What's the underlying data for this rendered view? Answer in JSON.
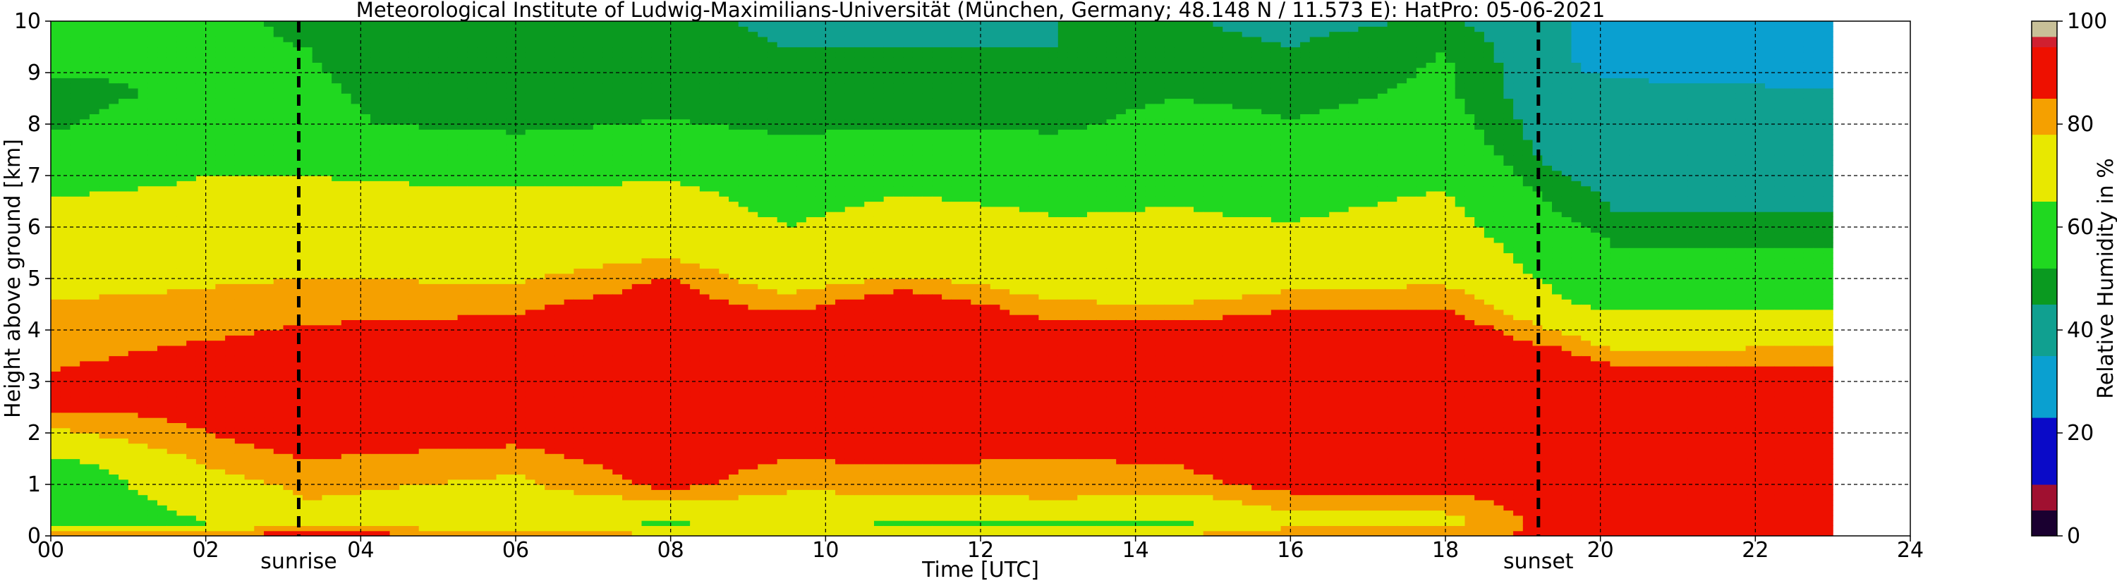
{
  "chart_data": {
    "type": "heatmap",
    "title": "Meteorological Institute of Ludwig-Maximilians-Universität (München, Germany; 48.148 N / 11.573 E):    HatPro: 05-06-2021",
    "xlabel": "Time [UTC]",
    "ylabel": "Height above ground [km]",
    "xlim": [
      0,
      24
    ],
    "ylim": [
      0,
      10
    ],
    "x_ticks": [
      "00",
      "02",
      "04",
      "06",
      "08",
      "10",
      "12",
      "14",
      "16",
      "18",
      "20",
      "22",
      "24"
    ],
    "y_ticks": [
      "0",
      "1",
      "2",
      "3",
      "4",
      "5",
      "6",
      "7",
      "8",
      "9",
      "10"
    ],
    "grid": true,
    "data_end_hour": 23,
    "colorbar": {
      "label": "Relative Humidity in %",
      "range": [
        0,
        100
      ],
      "ticks": [
        "0",
        "20",
        "40",
        "60",
        "80",
        "100"
      ],
      "colors": [
        {
          "from": 0,
          "to": 5,
          "color": "#1a0030"
        },
        {
          "from": 5,
          "to": 10,
          "color": "#a01030"
        },
        {
          "from": 10,
          "to": 23,
          "color": "#0a0ac8"
        },
        {
          "from": 23,
          "to": 35,
          "color": "#0aa0d0"
        },
        {
          "from": 35,
          "to": 45,
          "color": "#10a090"
        },
        {
          "from": 45,
          "to": 52,
          "color": "#0a9a20"
        },
        {
          "from": 52,
          "to": 65,
          "color": "#20d820"
        },
        {
          "from": 65,
          "to": 78,
          "color": "#e8e800"
        },
        {
          "from": 78,
          "to": 85,
          "color": "#f5a000"
        },
        {
          "from": 85,
          "to": 95,
          "color": "#ee1000"
        },
        {
          "from": 95,
          "to": 97,
          "color": "#d02030"
        },
        {
          "from": 97,
          "to": 100,
          "color": "#c8c098"
        }
      ]
    },
    "markers": [
      {
        "label": "sunrise",
        "hour": 3.2
      },
      {
        "label": "sunset",
        "hour": 19.2
      }
    ],
    "humidity_profiles": [
      {
        "hour": 0,
        "levels": [
          [
            0,
            85
          ],
          [
            0.25,
            52
          ],
          [
            1.3,
            58
          ],
          [
            1.8,
            72
          ],
          [
            2.6,
            88
          ],
          [
            4.6,
            78
          ],
          [
            5.2,
            70
          ],
          [
            6.5,
            66
          ],
          [
            7.8,
            52
          ],
          [
            8.6,
            50
          ],
          [
            10,
            58
          ]
        ]
      },
      {
        "hour": 2,
        "levels": [
          [
            0,
            85
          ],
          [
            0.25,
            65
          ],
          [
            1.0,
            74
          ],
          [
            2.0,
            85
          ],
          [
            3.0,
            90
          ],
          [
            4.6,
            80
          ],
          [
            5.5,
            72
          ],
          [
            7.0,
            65
          ],
          [
            8.0,
            55
          ],
          [
            9.2,
            52
          ],
          [
            10,
            55
          ]
        ]
      },
      {
        "hour": 3.3,
        "levels": [
          [
            0,
            90
          ],
          [
            0.3,
            75
          ],
          [
            1.0,
            80
          ],
          [
            2.0,
            90
          ],
          [
            3.0,
            92
          ],
          [
            4.6,
            82
          ],
          [
            5.3,
            75
          ],
          [
            7.0,
            65
          ],
          [
            8.0,
            53
          ],
          [
            9.5,
            52
          ],
          [
            10,
            50
          ]
        ]
      },
      {
        "hour": 6,
        "levels": [
          [
            0,
            85
          ],
          [
            0.2,
            70
          ],
          [
            1.2,
            78
          ],
          [
            2.0,
            88
          ],
          [
            3.0,
            92
          ],
          [
            4.5,
            84
          ],
          [
            5.2,
            74
          ],
          [
            6.5,
            68
          ],
          [
            7.2,
            60
          ],
          [
            8.0,
            50
          ],
          [
            10,
            48
          ]
        ]
      },
      {
        "hour": 8,
        "levels": [
          [
            0,
            82
          ],
          [
            0.2,
            62
          ],
          [
            1.0,
            88
          ],
          [
            2.0,
            92
          ],
          [
            3.5,
            94
          ],
          [
            5.0,
            86
          ],
          [
            5.6,
            74
          ],
          [
            6.8,
            66
          ],
          [
            7.5,
            58
          ],
          [
            8.5,
            48
          ],
          [
            10,
            52
          ]
        ]
      },
      {
        "hour": 9.5,
        "levels": [
          [
            0,
            80
          ],
          [
            0.2,
            70
          ],
          [
            1.2,
            82
          ],
          [
            2.0,
            90
          ],
          [
            4.0,
            92
          ],
          [
            5.0,
            72
          ],
          [
            5.8,
            66
          ],
          [
            7.0,
            60
          ],
          [
            8.0,
            50
          ],
          [
            9.5,
            45
          ],
          [
            10,
            40
          ]
        ]
      },
      {
        "hour": 11,
        "levels": [
          [
            0,
            80
          ],
          [
            0.2,
            62
          ],
          [
            1.0,
            82
          ],
          [
            2.0,
            90
          ],
          [
            4.5,
            92
          ],
          [
            5.2,
            74
          ],
          [
            6.5,
            66
          ],
          [
            7.5,
            58
          ],
          [
            8.2,
            48
          ],
          [
            9.5,
            45
          ],
          [
            10,
            42
          ]
        ]
      },
      {
        "hour": 13,
        "levels": [
          [
            0,
            82
          ],
          [
            0.2,
            62
          ],
          [
            0.8,
            80
          ],
          [
            2.0,
            88
          ],
          [
            3.8,
            92
          ],
          [
            4.8,
            74
          ],
          [
            6.0,
            66
          ],
          [
            7.2,
            60
          ],
          [
            8.0,
            50
          ],
          [
            9.5,
            45
          ],
          [
            10,
            45
          ]
        ]
      },
      {
        "hour": 14.5,
        "levels": [
          [
            0,
            82
          ],
          [
            0.2,
            62
          ],
          [
            1.0,
            82
          ],
          [
            2.0,
            90
          ],
          [
            3.8,
            92
          ],
          [
            4.8,
            72
          ],
          [
            6.2,
            66
          ],
          [
            7.5,
            60
          ],
          [
            8.5,
            52
          ],
          [
            9.6,
            48
          ],
          [
            10,
            46
          ]
        ]
      },
      {
        "hour": 16,
        "levels": [
          [
            0,
            82
          ],
          [
            0.3,
            75
          ],
          [
            1.0,
            88
          ],
          [
            2.0,
            92
          ],
          [
            4.0,
            92
          ],
          [
            5.0,
            74
          ],
          [
            6.0,
            66
          ],
          [
            7.0,
            58
          ],
          [
            8.5,
            50
          ],
          [
            9.5,
            45
          ],
          [
            10,
            42
          ]
        ]
      },
      {
        "hour": 18,
        "levels": [
          [
            0,
            82
          ],
          [
            0.3,
            75
          ],
          [
            1.0,
            88
          ],
          [
            2.5,
            92
          ],
          [
            4.0,
            92
          ],
          [
            5.0,
            76
          ],
          [
            6.3,
            68
          ],
          [
            7.5,
            60
          ],
          [
            8.5,
            54
          ],
          [
            9.5,
            52
          ],
          [
            10,
            46
          ]
        ]
      },
      {
        "hour": 19.5,
        "levels": [
          [
            0,
            88
          ],
          [
            0.5,
            90
          ],
          [
            2.0,
            94
          ],
          [
            3.5,
            88
          ],
          [
            4.5,
            66
          ],
          [
            5.5,
            58
          ],
          [
            6.5,
            50
          ],
          [
            7.5,
            40
          ],
          [
            9.0,
            36
          ],
          [
            10,
            36
          ]
        ]
      },
      {
        "hour": 20.2,
        "levels": [
          [
            0,
            88
          ],
          [
            0.5,
            90
          ],
          [
            2.5,
            92
          ],
          [
            3.2,
            88
          ],
          [
            3.7,
            76
          ],
          [
            4.3,
            66
          ],
          [
            5.0,
            55
          ],
          [
            6.0,
            50
          ],
          [
            6.4,
            44
          ],
          [
            8.5,
            38
          ],
          [
            9.5,
            30
          ],
          [
            10,
            28
          ]
        ]
      },
      {
        "hour": 23,
        "levels": [
          [
            0,
            88
          ],
          [
            0.5,
            90
          ],
          [
            2.5,
            92
          ],
          [
            3.2,
            86
          ],
          [
            3.8,
            76
          ],
          [
            4.3,
            66
          ],
          [
            5.0,
            55
          ],
          [
            6.0,
            50
          ],
          [
            6.4,
            42
          ],
          [
            8.5,
            36
          ],
          [
            9.5,
            30
          ],
          [
            10,
            28
          ]
        ]
      }
    ]
  }
}
